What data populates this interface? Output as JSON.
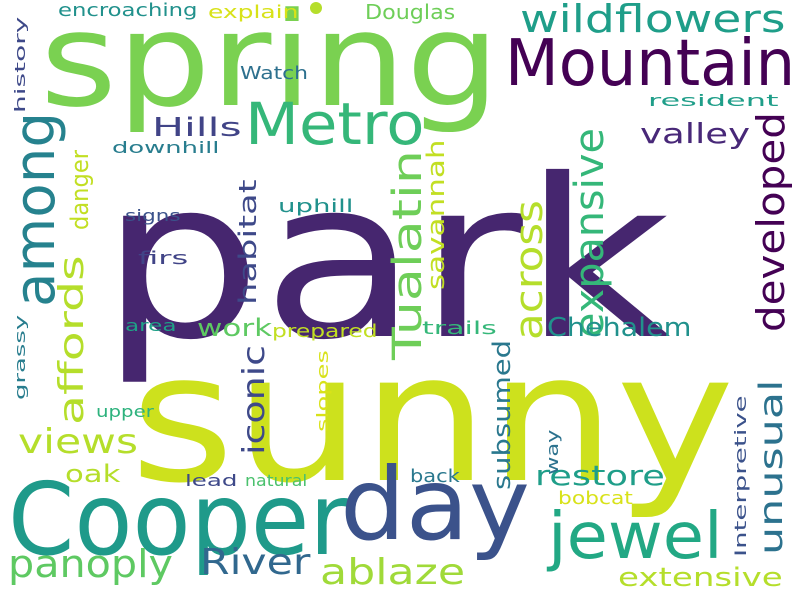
{
  "words": [
    {
      "text": "park",
      "color": "#46266f",
      "rotate": false
    },
    {
      "text": "sunny",
      "color": "#cde11d",
      "rotate": false
    },
    {
      "text": "spring",
      "color": "#7ad151",
      "rotate": false
    },
    {
      "text": "Cooper",
      "color": "#1f9a8a",
      "rotate": false
    },
    {
      "text": "day",
      "color": "#3b528b",
      "rotate": false
    },
    {
      "text": "Mountain",
      "color": "#440154",
      "rotate": false
    },
    {
      "text": "Metro",
      "color": "#35b779",
      "rotate": false
    },
    {
      "text": "jewel",
      "color": "#22a884",
      "rotate": false
    },
    {
      "text": "wildflowers",
      "color": "#1f9e89",
      "rotate": false
    },
    {
      "text": "among",
      "color": "#26828e",
      "rotate": true
    },
    {
      "text": "expansive",
      "color": "#35b779",
      "rotate": true
    },
    {
      "text": "developed",
      "color": "#440154",
      "rotate": true
    },
    {
      "text": "Tualatin",
      "color": "#6ece58",
      "rotate": true
    },
    {
      "text": "across",
      "color": "#b5de2b",
      "rotate": true
    },
    {
      "text": "affords",
      "color": "#b5de2b",
      "rotate": true
    },
    {
      "text": "unusual",
      "color": "#2c728e",
      "rotate": true
    },
    {
      "text": "views",
      "color": "#b5de2b",
      "rotate": false
    },
    {
      "text": "panoply",
      "color": "#5ec962",
      "rotate": false
    },
    {
      "text": "River",
      "color": "#31688e",
      "rotate": false
    },
    {
      "text": "ablaze",
      "color": "#a0da39",
      "rotate": false
    },
    {
      "text": "extensive",
      "color": "#b5de2b",
      "rotate": false
    },
    {
      "text": "Chehalem",
      "color": "#21918c",
      "rotate": false
    },
    {
      "text": "restore",
      "color": "#1f9e89",
      "rotate": false
    },
    {
      "text": "valley",
      "color": "#482878",
      "rotate": false
    },
    {
      "text": "Hills",
      "color": "#414487",
      "rotate": false
    },
    {
      "text": "iconic",
      "color": "#3e4989",
      "rotate": true
    },
    {
      "text": "subsumed",
      "color": "#2a788e",
      "rotate": true
    },
    {
      "text": "habitat",
      "color": "#3e4989",
      "rotate": true
    },
    {
      "text": "savannah",
      "color": "#c2df23",
      "rotate": true
    },
    {
      "text": "danger",
      "color": "#c2df23",
      "rotate": true
    },
    {
      "text": "work",
      "color": "#5ec962",
      "rotate": false
    },
    {
      "text": "oak",
      "color": "#b5de2b",
      "rotate": false
    },
    {
      "text": "Douglas",
      "color": "#6ece58",
      "rotate": false
    },
    {
      "text": "encroaching",
      "color": "#21918c",
      "rotate": false
    },
    {
      "text": "explain",
      "color": "#d8e219",
      "rotate": false
    },
    {
      "text": "Watch",
      "color": "#2d708e",
      "rotate": false
    },
    {
      "text": "resident",
      "color": "#1f9e89",
      "rotate": false
    },
    {
      "text": "downhill",
      "color": "#287d8e",
      "rotate": false
    },
    {
      "text": "uphill",
      "color": "#21918c",
      "rotate": false
    },
    {
      "text": "signs",
      "color": "#3b528b",
      "rotate": false
    },
    {
      "text": "firs",
      "color": "#414487",
      "rotate": false
    },
    {
      "text": "area",
      "color": "#1fa187",
      "rotate": false
    },
    {
      "text": "prepared",
      "color": "#c2df23",
      "rotate": false
    },
    {
      "text": "trails",
      "color": "#35b779",
      "rotate": false
    },
    {
      "text": "upper",
      "color": "#2db27d",
      "rotate": false
    },
    {
      "text": "lead",
      "color": "#3e4989",
      "rotate": false
    },
    {
      "text": "natural",
      "color": "#4ac16d",
      "rotate": false
    },
    {
      "text": "back",
      "color": "#2a788e",
      "rotate": false
    },
    {
      "text": "bobcat",
      "color": "#d8e219",
      "rotate": false
    },
    {
      "text": "history",
      "color": "#3e4989",
      "rotate": true
    },
    {
      "text": "grassy",
      "color": "#287d8e",
      "rotate": true
    },
    {
      "text": "slopes",
      "color": "#d8e219",
      "rotate": true
    },
    {
      "text": "way",
      "color": "#2c728e",
      "rotate": true
    },
    {
      "text": "Interpretive",
      "color": "#3b528b",
      "rotate": true
    },
    {
      "text": "",
      "color": "#b5de2b",
      "rotate": false
    }
  ]
}
